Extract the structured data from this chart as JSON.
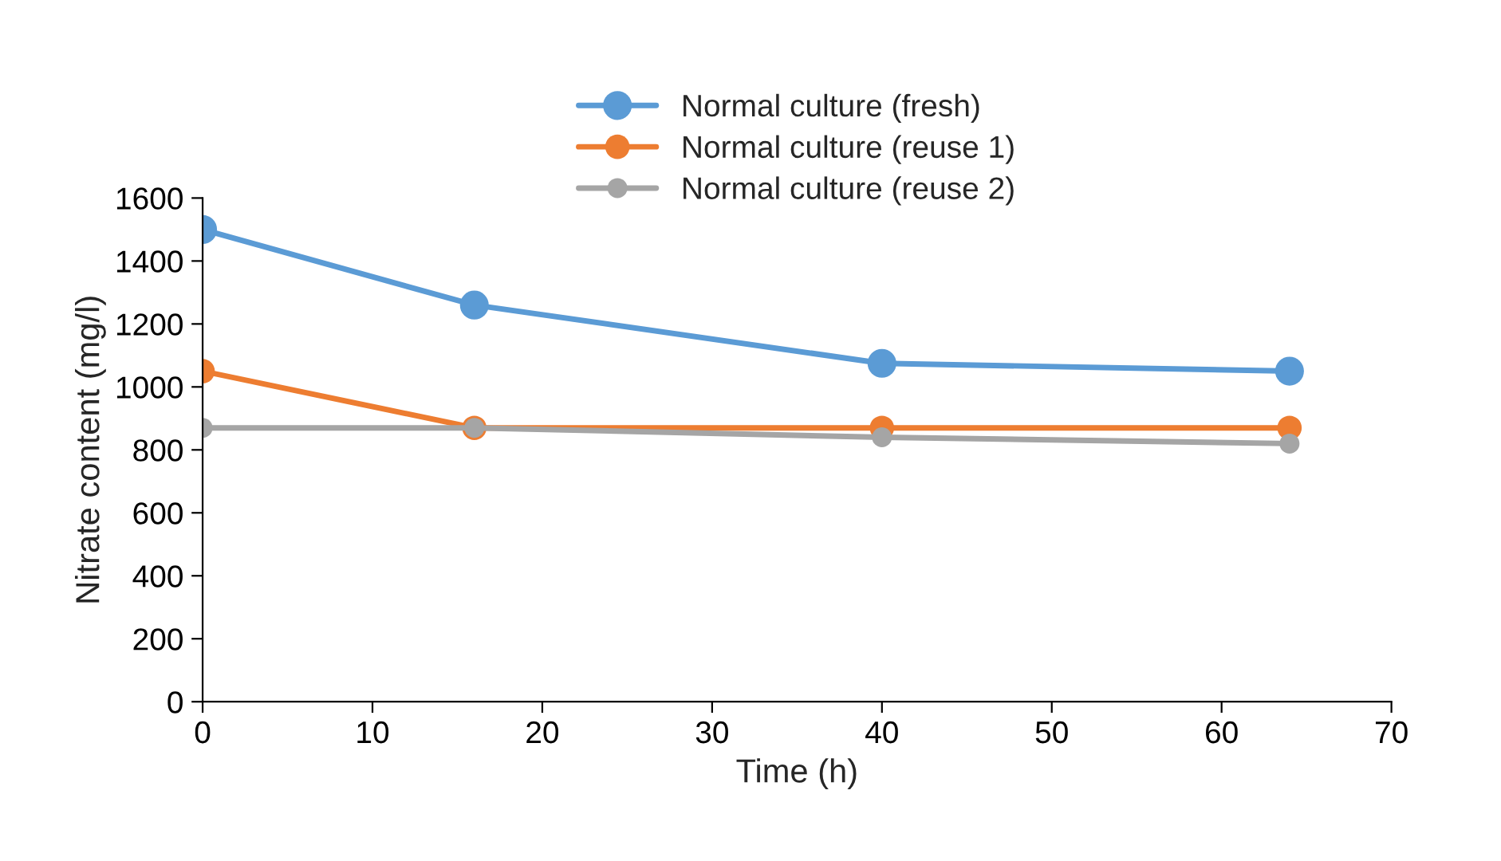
{
  "chart_data": {
    "type": "line",
    "xlabel": "Time (h)",
    "ylabel": "Nitrate content (mg/l)",
    "x": [
      0,
      16,
      40,
      64
    ],
    "series": [
      {
        "name": "Normal culture (fresh)",
        "color": "#5b9bd5",
        "values": [
          1500,
          1260,
          1075,
          1050
        ]
      },
      {
        "name": "Normal culture (reuse 1)",
        "color": "#ed7d31",
        "values": [
          1050,
          870,
          870,
          870
        ]
      },
      {
        "name": "Normal culture (reuse 2)",
        "color": "#a5a5a5",
        "values": [
          870,
          870,
          840,
          820
        ]
      }
    ],
    "xlim": [
      0,
      70
    ],
    "xticks": [
      0,
      10,
      20,
      30,
      40,
      50,
      60,
      70
    ],
    "ylim": [
      0,
      1600
    ],
    "yticks": [
      0,
      200,
      400,
      600,
      800,
      1000,
      1200,
      1400,
      1600
    ],
    "grid": false,
    "legend": "top",
    "marker": "circle",
    "line_style": "solid"
  }
}
